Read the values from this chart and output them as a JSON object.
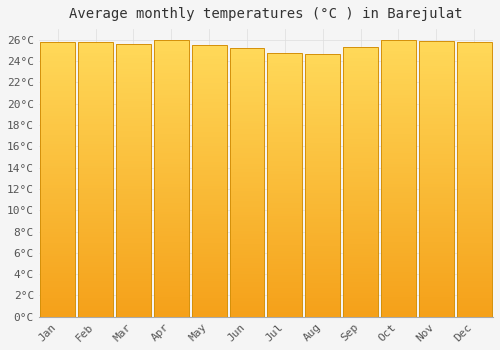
{
  "title": "Average monthly temperatures (°C ) in Barejulat",
  "months": [
    "Jan",
    "Feb",
    "Mar",
    "Apr",
    "May",
    "Jun",
    "Jul",
    "Aug",
    "Sep",
    "Oct",
    "Nov",
    "Dec"
  ],
  "values": [
    25.8,
    25.8,
    25.6,
    26.0,
    25.5,
    25.2,
    24.8,
    24.7,
    25.3,
    26.0,
    25.9,
    25.8
  ],
  "bar_color_top": "#FFCC44",
  "bar_color_bottom": "#F5A000",
  "bar_edge_color": "#D4900A",
  "background_color": "#F5F5F5",
  "grid_color": "#DDDDDD",
  "ylim": [
    0,
    27
  ],
  "ytick_step": 2,
  "title_fontsize": 10,
  "tick_fontsize": 8,
  "font_family": "monospace",
  "bar_width": 0.92
}
